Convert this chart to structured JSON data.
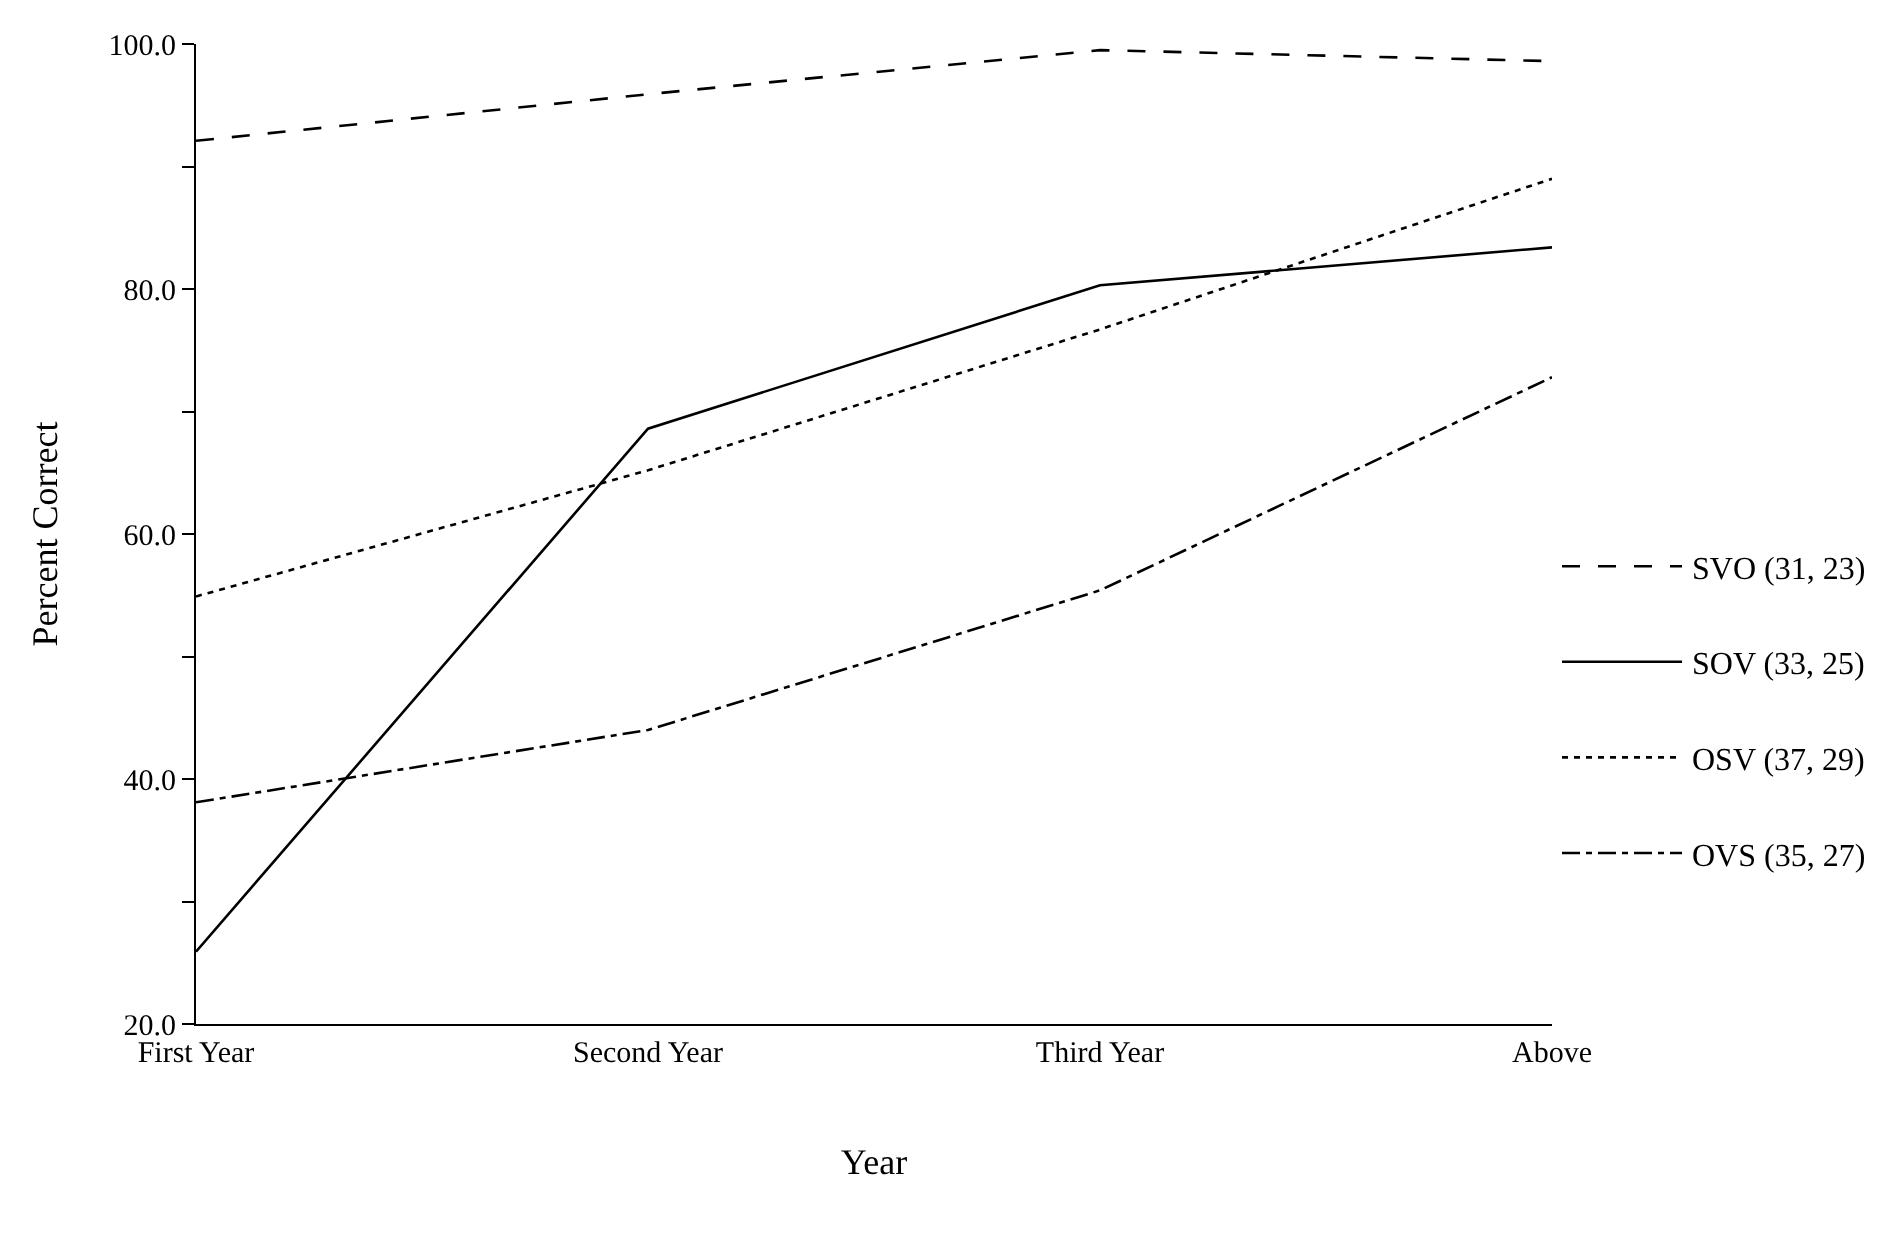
{
  "chart_data": {
    "type": "line",
    "xlabel": "Year",
    "ylabel": "Percent Correct",
    "categories": [
      "First Year",
      "Second Year",
      "Third Year",
      "Above"
    ],
    "series": [
      {
        "name": "SVO (31, 23)",
        "color": "#000000",
        "line_style": "dashed",
        "values": [
          92.1,
          95.9,
          99.5,
          98.6
        ]
      },
      {
        "name": "SOV (33, 25)",
        "color": "#000000",
        "line_style": "solid",
        "values": [
          25.9,
          68.6,
          80.3,
          83.4
        ]
      },
      {
        "name": "OSV (37, 29)",
        "color": "#000000",
        "line_style": "dotted",
        "values": [
          54.9,
          65.2,
          76.7,
          89.0
        ]
      },
      {
        "name": "OVS (35, 27)",
        "color": "#000000",
        "line_style": "dashdot",
        "values": [
          38.1,
          44.0,
          55.4,
          72.8
        ]
      }
    ],
    "ylim": [
      20,
      100
    ],
    "yticks": [
      {
        "value": 20,
        "label": "20.0"
      },
      {
        "value": 30,
        "label": null
      },
      {
        "value": 40,
        "label": "40.0"
      },
      {
        "value": 50,
        "label": null
      },
      {
        "value": 60,
        "label": "60.0"
      },
      {
        "value": 70,
        "label": null
      },
      {
        "value": 80,
        "label": "80.0"
      },
      {
        "value": 90,
        "label": null
      },
      {
        "value": 100,
        "label": "100.0"
      }
    ],
    "legend": "right",
    "marker": "none"
  }
}
